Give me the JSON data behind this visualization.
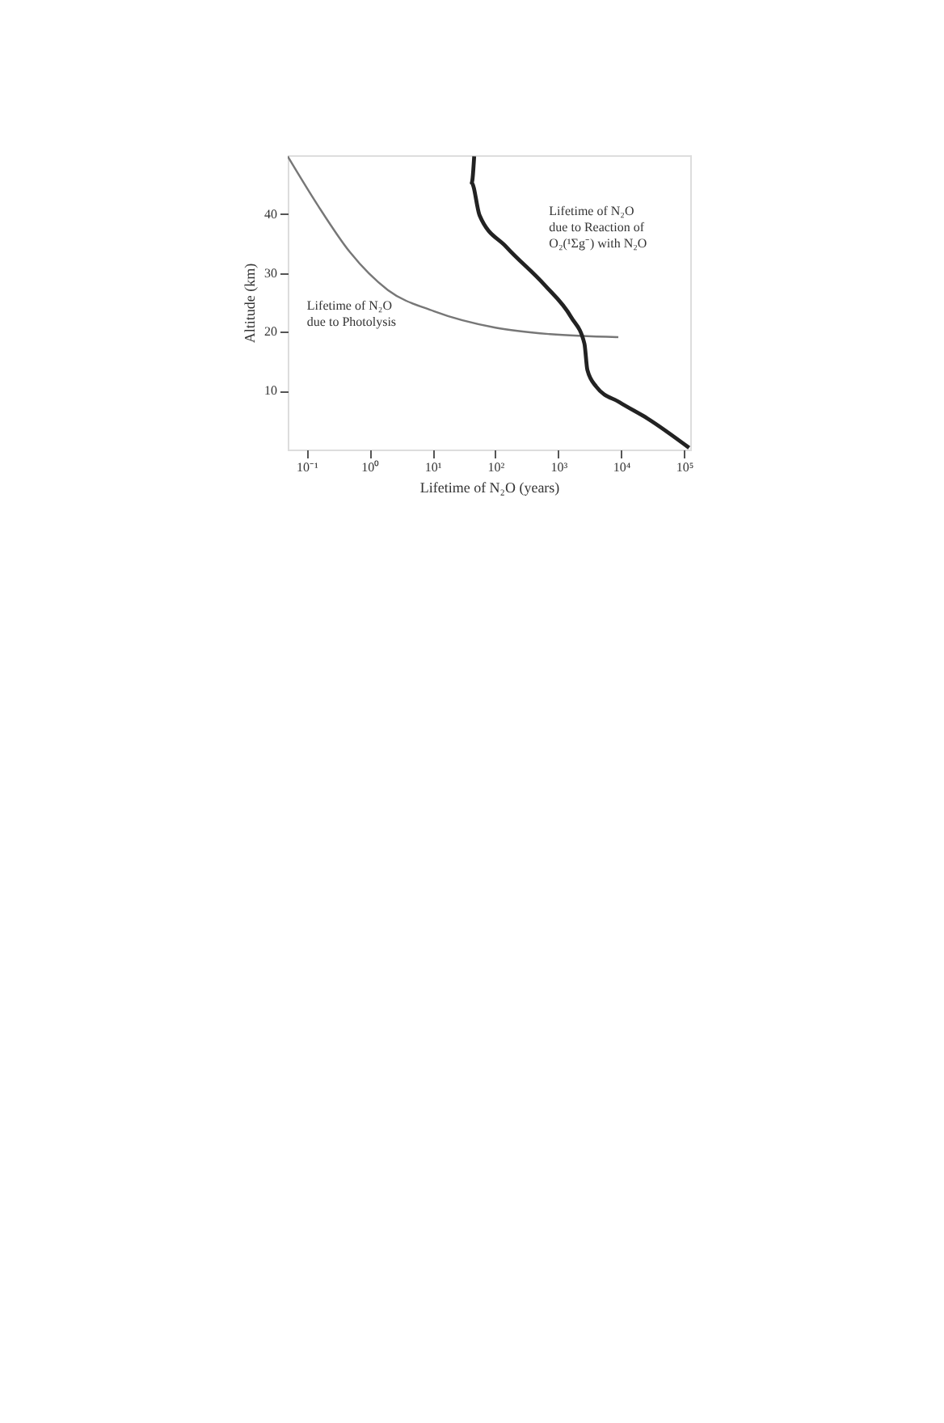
{
  "chart_data": {
    "type": "line",
    "xlabel": "Lifetime of N₂O (years)",
    "ylabel": "Altitude (km)",
    "log": "x",
    "xlim": [
      0.05,
      125000
    ],
    "ylim": [
      0,
      50
    ],
    "xticks": [
      {
        "value": 0.1,
        "label": "10⁻¹"
      },
      {
        "value": 1,
        "label": "10⁰"
      },
      {
        "value": 10,
        "label": "10¹"
      },
      {
        "value": 100,
        "label": "10²"
      },
      {
        "value": 1000,
        "label": "10³"
      },
      {
        "value": 10000,
        "label": "10⁴"
      },
      {
        "value": 100000,
        "label": "10⁵"
      }
    ],
    "yticks": [
      10,
      20,
      30,
      40
    ],
    "grid": false,
    "marker": "none",
    "line_style": "solid",
    "series": [
      {
        "name": "Lifetime of N₂O\ndue to Photolysis",
        "color": "#777777",
        "x": [
          0.05,
          0.148,
          0.49,
          1.95,
          10.5,
          100,
          740,
          9000
        ],
        "values": [
          49.8,
          41.6,
          33.5,
          27.1,
          23.5,
          20.7,
          19.6,
          19.1
        ]
      },
      {
        "name": "Lifetime of N₂O\ndue to Reaction of\nO₂(¹Σg⁻) with N₂O",
        "color": "#222222",
        "x": [
          46,
          42,
          56,
          150,
          600,
          1600,
          2600,
          2900,
          4000,
          9500,
          26000,
          120000
        ],
        "values": [
          49.8,
          45.3,
          39.8,
          34.4,
          28,
          22.5,
          18,
          13.5,
          10.7,
          8,
          5.3,
          0.3
        ]
      }
    ]
  }
}
